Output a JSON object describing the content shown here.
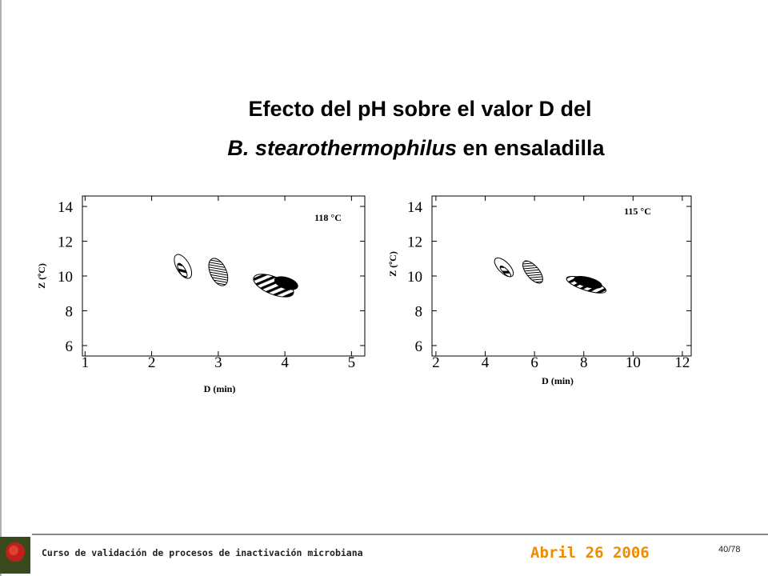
{
  "title": {
    "line1": "Efecto del pH sobre el valor D del",
    "species": "B. stearothermophilus",
    "rest": " en ensaladilla"
  },
  "chart_data": [
    {
      "type": "ellipse",
      "annotation": "118 °C",
      "x_label": "D (min)",
      "y_label": "Z (ºC)",
      "xlim": [
        0.96,
        5.2
      ],
      "xticks": [
        1,
        2,
        3,
        4,
        5
      ],
      "ylim": [
        5.4,
        14.6
      ],
      "yticks": [
        6,
        8,
        10,
        12,
        14
      ],
      "series": [
        {
          "color": "#000000",
          "fill": "open",
          "x": [
            2.47
          ],
          "y": [
            10.55
          ],
          "x_radius": [
            0.2
          ],
          "y_radius": [
            0.37
          ],
          "angle": [
            60
          ]
        },
        {
          "color": "#000000",
          "fill": "hatch-fine",
          "x": [
            3.0
          ],
          "y": [
            10.23
          ],
          "x_radius": [
            0.22
          ],
          "y_radius": [
            0.46
          ],
          "angle": [
            65
          ]
        },
        {
          "color": "#000000",
          "fill": "hatch-wide",
          "x": [
            2.46,
            3.83
          ],
          "y": [
            10.32,
            9.45
          ],
          "x_radius": [
            0.12,
            0.32
          ],
          "y_radius": [
            0.18,
            0.5
          ],
          "angle": [
            60,
            22
          ]
        },
        {
          "color": "#000000",
          "fill": "solid",
          "x": [
            4.02
          ],
          "y": [
            9.59
          ],
          "x_radius": [
            0.18
          ],
          "y_radius": [
            0.32
          ],
          "angle": [
            18
          ]
        }
      ]
    },
    {
      "type": "ellipse",
      "annotation": "115 °C",
      "x_label": "D (min)",
      "y_label": "Z (ºC)",
      "xlim": [
        1.84,
        12.36
      ],
      "xticks": [
        2,
        4,
        6,
        8,
        10,
        12
      ],
      "ylim": [
        5.4,
        14.6
      ],
      "yticks": [
        6,
        8,
        10,
        12,
        14
      ],
      "series": [
        {
          "color": "#000000",
          "fill": "open",
          "x": [
            4.76
          ],
          "y": [
            10.5
          ],
          "x_radius": [
            0.49
          ],
          "y_radius": [
            0.32
          ],
          "angle": [
            45
          ]
        },
        {
          "color": "#000000",
          "fill": "hatch-fine",
          "x": [
            5.93
          ],
          "y": [
            10.23
          ],
          "x_radius": [
            0.55
          ],
          "y_radius": [
            0.36
          ],
          "angle": [
            50
          ]
        },
        {
          "color": "#000000",
          "fill": "hatch-wide",
          "x": [
            4.82,
            8.1
          ],
          "y": [
            10.27,
            9.5
          ],
          "x_radius": [
            0.29,
            0.84
          ],
          "y_radius": [
            0.14,
            0.32
          ],
          "angle": [
            45,
            18
          ]
        },
        {
          "color": "#000000",
          "fill": "solid",
          "x": [
            8.17
          ],
          "y": [
            9.64
          ],
          "x_radius": [
            0.58
          ],
          "y_radius": [
            0.27
          ],
          "angle": [
            15
          ]
        }
      ]
    }
  ],
  "footer": {
    "course": "Curso de validación de procesos de inactivación microbiana",
    "date": "Abril 26 2006",
    "page": "40/78"
  }
}
